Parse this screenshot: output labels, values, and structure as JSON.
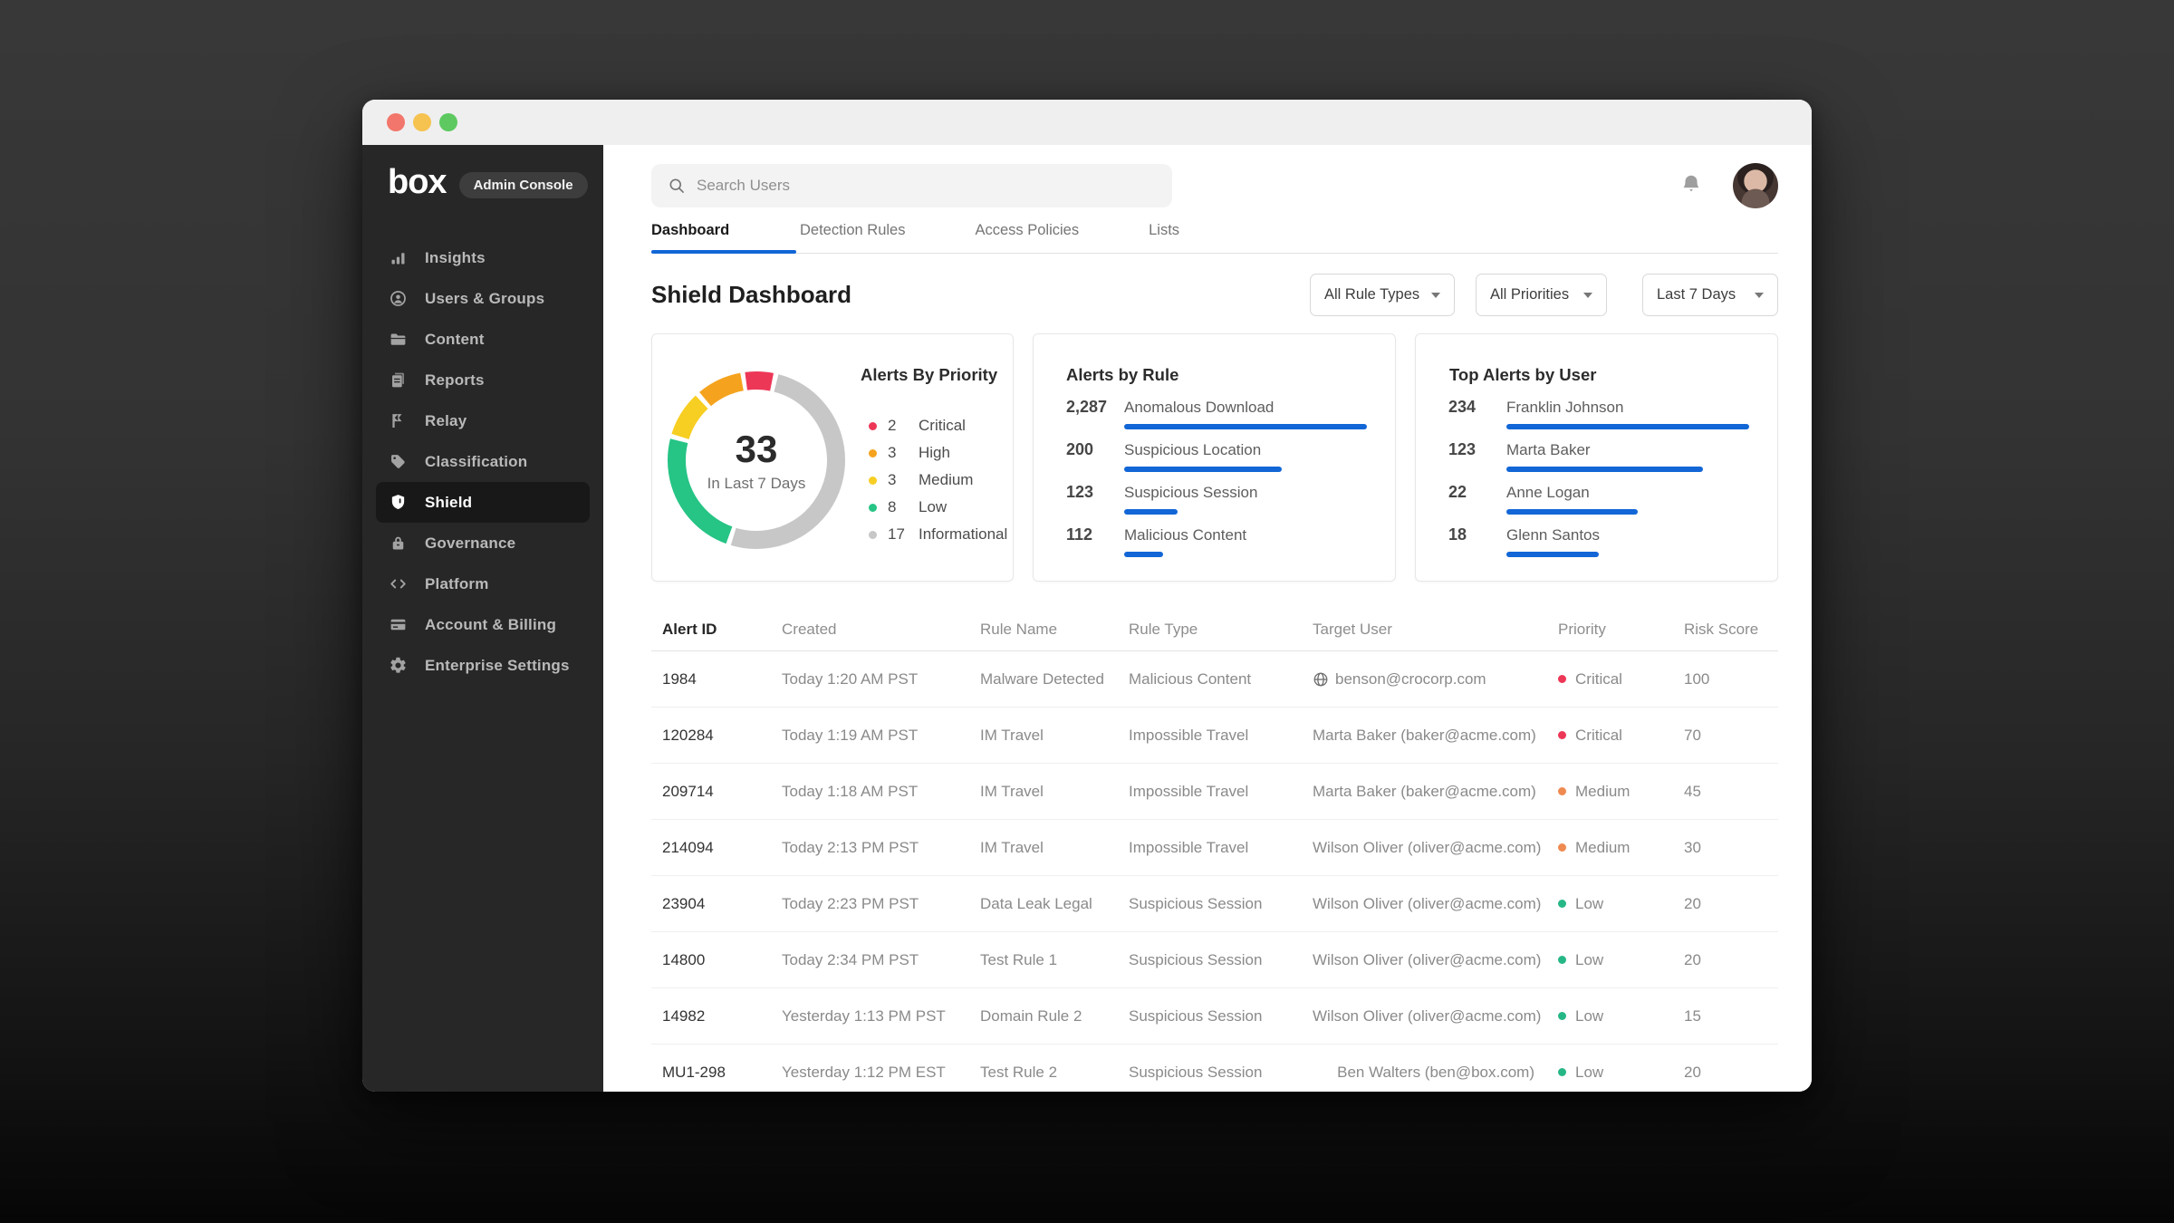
{
  "window": {
    "title": ""
  },
  "sidebar": {
    "logo": "box",
    "badge": "Admin Console",
    "items": [
      {
        "label": "Insights",
        "icon": "insights-icon",
        "active": false
      },
      {
        "label": "Users & Groups",
        "icon": "users-icon",
        "active": false
      },
      {
        "label": "Content",
        "icon": "folder-icon",
        "active": false
      },
      {
        "label": "Reports",
        "icon": "reports-icon",
        "active": false
      },
      {
        "label": "Relay",
        "icon": "relay-icon",
        "active": false
      },
      {
        "label": "Classification",
        "icon": "tag-icon",
        "active": false
      },
      {
        "label": "Shield",
        "icon": "shield-icon",
        "active": true
      },
      {
        "label": "Governance",
        "icon": "lock-icon",
        "active": false
      },
      {
        "label": "Platform",
        "icon": "code-icon",
        "active": false
      },
      {
        "label": "Account & Billing",
        "icon": "billing-icon",
        "active": false
      },
      {
        "label": "Enterprise Settings",
        "icon": "gear-icon",
        "active": false
      }
    ]
  },
  "topbar": {
    "search_placeholder": "Search Users"
  },
  "tabs": [
    {
      "label": "Dashboard",
      "active": true
    },
    {
      "label": "Detection Rules",
      "active": false
    },
    {
      "label": "Access Policies",
      "active": false
    },
    {
      "label": "Lists",
      "active": false
    }
  ],
  "page_title": "Shield Dashboard",
  "filters": [
    {
      "value": "All Rule Types"
    },
    {
      "value": "All Priorities"
    },
    {
      "value": "Last 7 Days"
    }
  ],
  "chart_data": [
    {
      "type": "pie",
      "variant": "donut",
      "title": "Alerts By Priority",
      "center_value": "33",
      "center_label": "In Last 7 Days",
      "total": 33,
      "segments": [
        {
          "label": "Critical",
          "value": 2,
          "color": "#ed3757"
        },
        {
          "label": "High",
          "value": 3,
          "color": "#f5a31e"
        },
        {
          "label": "Medium",
          "value": 3,
          "color": "#f7ce22"
        },
        {
          "label": "Low",
          "value": 8,
          "color": "#26c485"
        },
        {
          "label": "Informational",
          "value": 17,
          "color": "#c7c7c7"
        }
      ],
      "draw_order": [
        0,
        4,
        3,
        2,
        1
      ],
      "start_angle_deg": -99
    },
    {
      "type": "bar",
      "orientation": "horizontal",
      "title": "Alerts by Rule",
      "bar_color": "#1266d6",
      "items": [
        {
          "label": "Anomalous Download",
          "value": "2,287",
          "bar_pct": 100
        },
        {
          "label": "Suspicious Location",
          "value": "200",
          "bar_pct": 65
        },
        {
          "label": "Suspicious Session",
          "value": "123",
          "bar_pct": 22
        },
        {
          "label": "Malicious Content",
          "value": "112",
          "bar_pct": 16
        }
      ]
    },
    {
      "type": "bar",
      "orientation": "horizontal",
      "title": "Top Alerts by User",
      "bar_color": "#1266d6",
      "items": [
        {
          "label": "Franklin Johnson",
          "value": "234",
          "bar_pct": 100
        },
        {
          "label": "Marta Baker",
          "value": "123",
          "bar_pct": 81
        },
        {
          "label": "Anne Logan",
          "value": "22",
          "bar_pct": 54
        },
        {
          "label": "Glenn Santos",
          "value": "18",
          "bar_pct": 38
        }
      ]
    }
  ],
  "table": {
    "columns": [
      "Alert ID",
      "Created",
      "Rule Name",
      "Rule Type",
      "Target User",
      "Priority",
      "Risk Score"
    ],
    "priority_colors": {
      "Critical": "#ed3757",
      "Medium": "#ef8a50",
      "Low": "#26b787"
    },
    "rows": [
      {
        "alert_id": "1984",
        "created": "Today 1:20 AM PST",
        "rule_name": "Malware Detected",
        "rule_type": "Malicious Content",
        "target_user": "benson@crocorp.com",
        "target_external": true,
        "target_align": "left",
        "priority": "Critical",
        "risk_score": "100"
      },
      {
        "alert_id": "120284",
        "created": "Today 1:19 AM PST",
        "rule_name": "IM Travel",
        "rule_type": "Impossible Travel",
        "target_user": "Marta Baker (baker@acme.com)",
        "target_external": false,
        "target_align": "left",
        "priority": "Critical",
        "risk_score": "70"
      },
      {
        "alert_id": "209714",
        "created": "Today 1:18 AM PST",
        "rule_name": "IM Travel",
        "rule_type": "Impossible Travel",
        "target_user": "Marta Baker (baker@acme.com)",
        "target_external": false,
        "target_align": "left",
        "priority": "Medium",
        "risk_score": "45"
      },
      {
        "alert_id": "214094",
        "created": "Today 2:13 PM PST",
        "rule_name": "IM Travel",
        "rule_type": "Impossible Travel",
        "target_user": "Wilson Oliver (oliver@acme.com)",
        "target_external": false,
        "target_align": "left",
        "priority": "Medium",
        "risk_score": "30"
      },
      {
        "alert_id": "23904",
        "created": "Today 2:23 PM PST",
        "rule_name": "Data Leak Legal",
        "rule_type": "Suspicious Session",
        "target_user": "Wilson Oliver (oliver@acme.com)",
        "target_external": false,
        "target_align": "left",
        "priority": "Low",
        "risk_score": "20"
      },
      {
        "alert_id": "14800",
        "created": "Today 2:34 PM PST",
        "rule_name": "Test Rule 1",
        "rule_type": "Suspicious Session",
        "target_user": "Wilson Oliver (oliver@acme.com)",
        "target_external": false,
        "target_align": "left",
        "priority": "Low",
        "risk_score": "20"
      },
      {
        "alert_id": "14982",
        "created": "Yesterday 1:13 PM PST",
        "rule_name": "Domain Rule 2",
        "rule_type": "Suspicious Session",
        "target_user": "Wilson Oliver (oliver@acme.com)",
        "target_external": false,
        "target_align": "left",
        "priority": "Low",
        "risk_score": "15"
      },
      {
        "alert_id": "MU1-298",
        "created": "Yesterday 1:12 PM EST",
        "rule_name": "Test Rule 2",
        "rule_type": "Suspicious Session",
        "target_user": "Ben Walters (ben@box.com)",
        "target_external": false,
        "target_align": "right",
        "priority": "Low",
        "risk_score": "20"
      }
    ]
  }
}
